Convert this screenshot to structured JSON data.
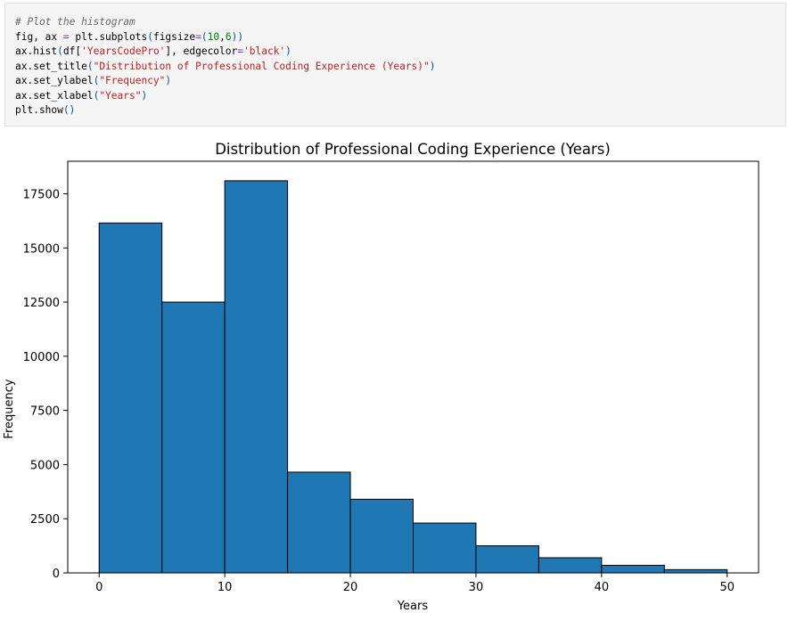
{
  "code_cell": {
    "lines": [
      [
        {
          "t": "# Plot the histogram",
          "c": "c-comment"
        }
      ],
      [
        {
          "t": "fig, ax "
        },
        {
          "t": "=",
          "c": "c-op"
        },
        {
          "t": " plt.subplots"
        },
        {
          "t": "(",
          "c": "c-paren"
        },
        {
          "t": "figsize"
        },
        {
          "t": "=",
          "c": "c-op"
        },
        {
          "t": "(",
          "c": "c-paren"
        },
        {
          "t": "10",
          "c": "c-num"
        },
        {
          "t": ","
        },
        {
          "t": "6",
          "c": "c-num"
        },
        {
          "t": "))",
          "c": "c-paren"
        }
      ],
      [
        {
          "t": "ax.hist"
        },
        {
          "t": "(",
          "c": "c-paren"
        },
        {
          "t": "df["
        },
        {
          "t": "'YearsCodePro'",
          "c": "c-str"
        },
        {
          "t": "], edgecolor"
        },
        {
          "t": "=",
          "c": "c-op"
        },
        {
          "t": "'black'",
          "c": "c-str"
        },
        {
          "t": ")",
          "c": "c-paren"
        }
      ],
      [
        {
          "t": "ax.set_title"
        },
        {
          "t": "(",
          "c": "c-paren"
        },
        {
          "t": "\"Distribution of Professional Coding Experience (Years)\"",
          "c": "c-str"
        },
        {
          "t": ")",
          "c": "c-paren"
        }
      ],
      [
        {
          "t": "ax.set_ylabel"
        },
        {
          "t": "(",
          "c": "c-paren"
        },
        {
          "t": "\"Frequency\"",
          "c": "c-str"
        },
        {
          "t": ")",
          "c": "c-paren"
        }
      ],
      [
        {
          "t": "ax.set_xlabel"
        },
        {
          "t": "(",
          "c": "c-paren"
        },
        {
          "t": "\"Years\"",
          "c": "c-str"
        },
        {
          "t": ")",
          "c": "c-paren"
        }
      ],
      [
        {
          "t": "plt.show"
        },
        {
          "t": "()",
          "c": "c-paren"
        }
      ]
    ]
  },
  "chart_data": {
    "type": "bar",
    "title": "Distribution of Professional Coding Experience (Years)",
    "xlabel": "Years",
    "ylabel": "Frequency",
    "bin_edges": [
      0,
      5,
      10,
      15,
      20,
      25,
      30,
      35,
      40,
      45,
      50
    ],
    "values": [
      16150,
      12500,
      18100,
      4650,
      3400,
      2300,
      1250,
      700,
      350,
      150
    ],
    "xlim": [
      -2.5,
      52.5
    ],
    "ylim": [
      0,
      19000
    ],
    "xticks": [
      0,
      10,
      20,
      30,
      40,
      50
    ],
    "yticks": [
      0,
      2500,
      5000,
      7500,
      10000,
      12500,
      15000,
      17500
    ],
    "bar_color": "#1f77b4",
    "edge_color": "#000000",
    "grid": false,
    "legend": false
  }
}
